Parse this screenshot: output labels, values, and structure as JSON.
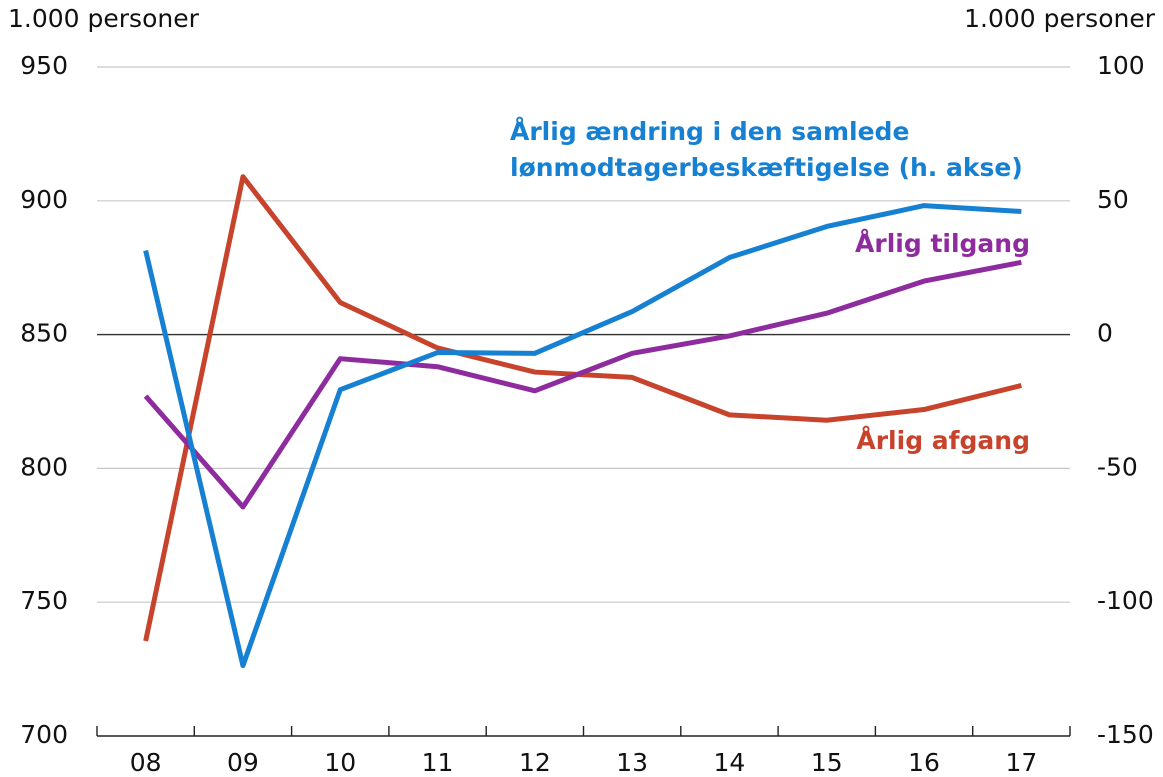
{
  "chart_data": {
    "type": "line",
    "y_label": "1.000 personer",
    "y2_label": "1.000 personer",
    "categories": [
      "08",
      "09",
      "10",
      "11",
      "12",
      "13",
      "14",
      "15",
      "16",
      "17"
    ],
    "series": [
      {
        "name": "Årlig afgang",
        "color": "#c8432b",
        "values": [
          735.5,
          909,
          862,
          845,
          836,
          834,
          820,
          818,
          822,
          831
        ]
      },
      {
        "name": "Årlig tilgang",
        "color": "#8e2b9e",
        "values": [
          827,
          785.6,
          841,
          838,
          829,
          843,
          849.5,
          858,
          870,
          877
        ]
      },
      {
        "name": "Årlig ændring i den samlede lønmodtagerbeskæftigelse (h. akse)",
        "color": "#1680d2",
        "axis": "y2",
        "values": [
          31.4,
          -123.7,
          -20.6,
          -6.7,
          -7,
          8.6,
          28.8,
          40.4,
          48.2,
          46
        ]
      }
    ],
    "ylim": [
      700,
      950
    ],
    "yticks": [
      700,
      750,
      800,
      850,
      900,
      950
    ],
    "y2lim": [
      -150,
      100
    ],
    "y2ticks": [
      -150,
      -100,
      -50,
      0,
      50,
      100
    ],
    "grid": true
  }
}
